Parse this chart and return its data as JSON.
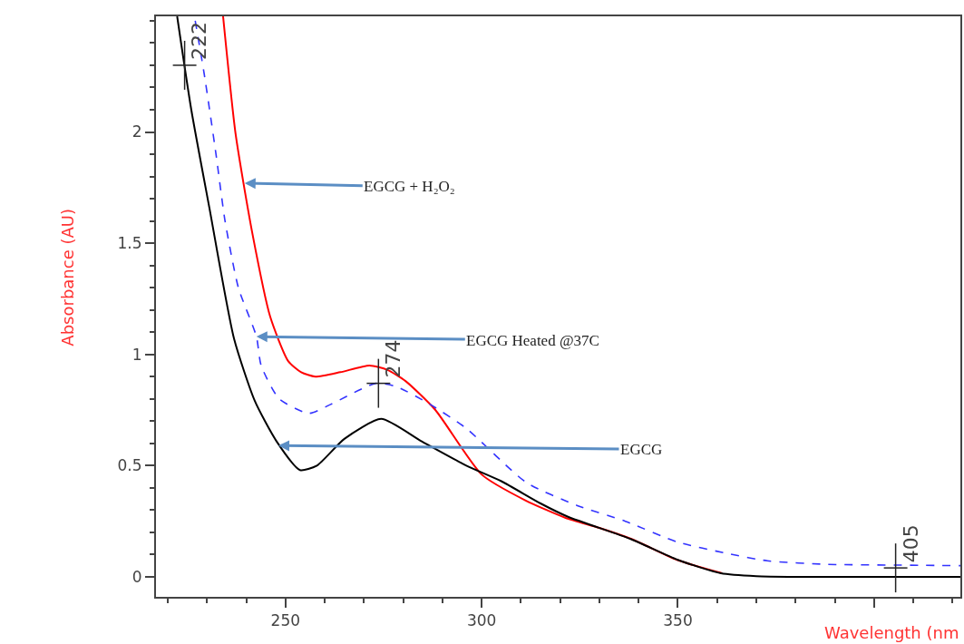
{
  "chart_data": {
    "type": "line",
    "xlabel": "Wavelength (nm",
    "ylabel": "Absorbance (AU)",
    "xlim": [
      217,
      422
    ],
    "ylim": [
      -0.09,
      2.52
    ],
    "xticks": [
      250,
      300,
      350,
      {
        "value": 400,
        "label": null
      }
    ],
    "yticks": [
      0,
      0.5,
      1,
      1.5,
      2
    ],
    "marker": "none",
    "series": [
      {
        "color": "#ff0000",
        "x": [
          234.1,
          237.3,
          241.5,
          246.1,
          250.7,
          254,
          257.6,
          264,
          271.4,
          276,
          280.6,
          288.2,
          300,
          311,
          321.4,
          330,
          338.2,
          349.8,
          361.3
        ],
        "values": [
          2.52,
          1.99,
          1.55,
          1.17,
          0.97,
          0.92,
          0.9,
          0.92,
          0.95,
          0.93,
          0.88,
          0.75,
          0.46,
          0.345,
          0.265,
          0.22,
          0.17,
          0.076,
          0.016
        ]
      },
      {
        "color": "#3333ff",
        "line_style": "dashed",
        "x": [
          227,
          229.3,
          232.3,
          234.6,
          238,
          242.6,
          243.8,
          248.4,
          256,
          261.5,
          273,
          278.3,
          286.9,
          296.1,
          311.3,
          324.4,
          336.6,
          349.8,
          362.9,
          372.8,
          388.2,
          411.3,
          422
        ],
        "values": [
          2.5,
          2.26,
          1.9,
          1.6,
          1.3,
          1.08,
          0.95,
          0.8,
          0.735,
          0.775,
          0.87,
          0.855,
          0.775,
          0.667,
          0.425,
          0.32,
          0.25,
          0.157,
          0.104,
          0.072,
          0.056,
          0.052,
          0.05
        ]
      },
      {
        "color": "#000000",
        "x": [
          222.4,
          226,
          230.6,
          236.9,
          242.2,
          247.7,
          253.7,
          258,
          265,
          274.4,
          284.6,
          296.1,
          305,
          315,
          322,
          338,
          350,
          361,
          370,
          380,
          422
        ],
        "values": [
          2.52,
          2.1,
          1.66,
          1.07,
          0.79,
          0.61,
          0.48,
          0.5,
          0.62,
          0.71,
          0.61,
          0.5,
          0.43,
          0.33,
          0.27,
          0.17,
          0.076,
          0.016,
          0.003,
          0,
          0
        ]
      }
    ],
    "annotations": [
      {
        "text": "EGCG + H₂O₂",
        "x": 239.6,
        "y": 1.77
      },
      {
        "text": "EGCG Heated @37C",
        "x": 242.6,
        "y": 1.08
      },
      {
        "text": "EGCG",
        "x": 248.2,
        "y": 0.59
      },
      {
        "text": "222",
        "x": 224.3,
        "y": 2.3
      },
      {
        "text": "274",
        "x": 273.7,
        "y": 0.87
      },
      {
        "text": "405",
        "x": 405.5,
        "y": 0.04
      }
    ]
  }
}
